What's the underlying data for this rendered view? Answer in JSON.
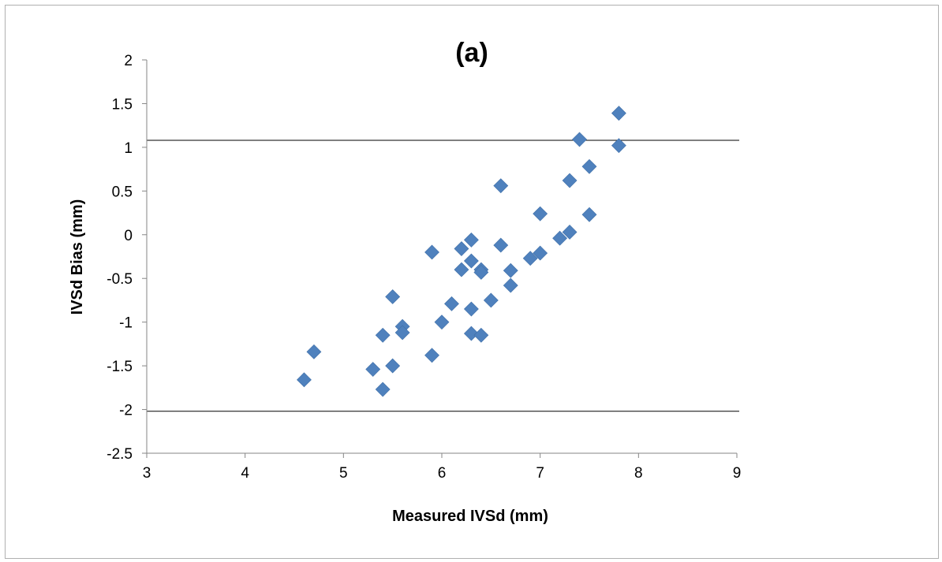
{
  "chart_data": {
    "type": "scatter",
    "title": "(a)",
    "xlabel": "Measured IVSd (mm)",
    "ylabel": "IVSd Bias (mm)",
    "xlim": [
      3,
      9
    ],
    "ylim": [
      -2.5,
      2
    ],
    "xticks": [
      "3",
      "4",
      "5",
      "6",
      "7",
      "8",
      "9"
    ],
    "yticks": [
      "2",
      "1.5",
      "1",
      "0.5",
      "0",
      "-0.5",
      "-1",
      "-1.5",
      "-2",
      "-2.5"
    ],
    "grid": false,
    "legend": "none",
    "marker_color": "#4f81bd",
    "reference_lines": [
      1.08,
      -2.02
    ],
    "points": [
      {
        "x": 4.6,
        "y": -1.66
      },
      {
        "x": 4.7,
        "y": -1.34
      },
      {
        "x": 5.3,
        "y": -1.54
      },
      {
        "x": 5.4,
        "y": -1.15
      },
      {
        "x": 5.4,
        "y": -1.77
      },
      {
        "x": 5.5,
        "y": -0.71
      },
      {
        "x": 5.5,
        "y": -1.5
      },
      {
        "x": 5.6,
        "y": -1.05
      },
      {
        "x": 5.6,
        "y": -1.12
      },
      {
        "x": 5.9,
        "y": -0.2
      },
      {
        "x": 5.9,
        "y": -1.38
      },
      {
        "x": 6.0,
        "y": -1.0
      },
      {
        "x": 6.1,
        "y": -0.79
      },
      {
        "x": 6.2,
        "y": -0.16
      },
      {
        "x": 6.2,
        "y": -0.4
      },
      {
        "x": 6.3,
        "y": -0.06
      },
      {
        "x": 6.3,
        "y": -0.3
      },
      {
        "x": 6.3,
        "y": -0.85
      },
      {
        "x": 6.3,
        "y": -1.13
      },
      {
        "x": 6.4,
        "y": -0.4
      },
      {
        "x": 6.4,
        "y": -0.43
      },
      {
        "x": 6.4,
        "y": -1.15
      },
      {
        "x": 6.5,
        "y": -0.75
      },
      {
        "x": 6.6,
        "y": 0.56
      },
      {
        "x": 6.6,
        "y": -0.12
      },
      {
        "x": 6.7,
        "y": -0.41
      },
      {
        "x": 6.7,
        "y": -0.58
      },
      {
        "x": 6.9,
        "y": -0.27
      },
      {
        "x": 7.0,
        "y": 0.24
      },
      {
        "x": 7.0,
        "y": -0.21
      },
      {
        "x": 7.2,
        "y": -0.04
      },
      {
        "x": 7.3,
        "y": 0.62
      },
      {
        "x": 7.3,
        "y": 0.03
      },
      {
        "x": 7.4,
        "y": 1.09
      },
      {
        "x": 7.5,
        "y": 0.78
      },
      {
        "x": 7.5,
        "y": 0.23
      },
      {
        "x": 7.8,
        "y": 1.39
      },
      {
        "x": 7.8,
        "y": 1.02
      }
    ]
  }
}
